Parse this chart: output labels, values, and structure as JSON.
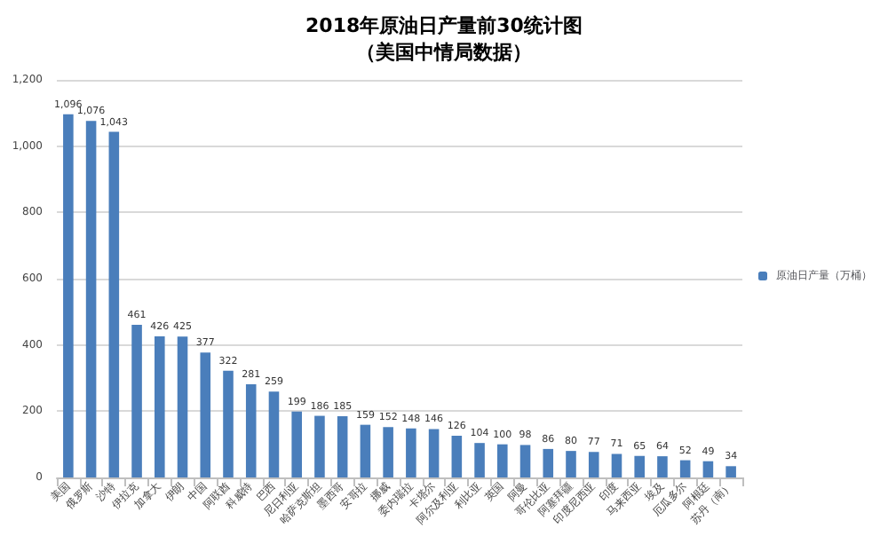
{
  "chart_data": {
    "type": "bar",
    "title": "2018年原油日产量前30统计图",
    "subtitle": "（美国中情局数据）",
    "categories": [
      "美国",
      "俄罗斯",
      "沙特",
      "伊拉克",
      "加拿大",
      "伊朗",
      "中国",
      "阿联酋",
      "科威特",
      "巴西",
      "尼日利亚",
      "哈萨克斯坦",
      "墨西哥",
      "安哥拉",
      "挪威",
      "委内瑞拉",
      "卡塔尔",
      "阿尔及利亚",
      "利比亚",
      "英国",
      "阿曼",
      "哥伦比亚",
      "阿塞拜疆",
      "印度尼西亚",
      "印度",
      "马来西亚",
      "埃及",
      "厄瓜多尔",
      "阿根廷",
      "苏丹（南）"
    ],
    "series": [
      {
        "name": "原油日产量（万桶）",
        "color": "#4a7ebb",
        "values": [
          1096,
          1076,
          1043,
          461,
          426,
          425,
          377,
          322,
          281,
          259,
          199,
          186,
          185,
          159,
          152,
          148,
          146,
          126,
          104,
          100,
          98,
          86,
          80,
          77,
          71,
          65,
          64,
          52,
          49,
          34
        ]
      }
    ],
    "value_labels": [
      "1,096",
      "1,076",
      "1,043",
      "461",
      "426",
      "425",
      "377",
      "322",
      "281",
      "259",
      "199",
      "186",
      "185",
      "159",
      "152",
      "148",
      "146",
      "126",
      "104",
      "100",
      "98",
      "86",
      "80",
      "77",
      "71",
      "65",
      "64",
      "52",
      "49",
      "34"
    ],
    "ylim": [
      0,
      1200
    ],
    "yticks": [
      0,
      200,
      400,
      600,
      800,
      {
        "value": 1000,
        "label": "1,000"
      },
      {
        "value": 1200,
        "label": "1,200"
      }
    ],
    "grid": "y",
    "legend": "right"
  }
}
